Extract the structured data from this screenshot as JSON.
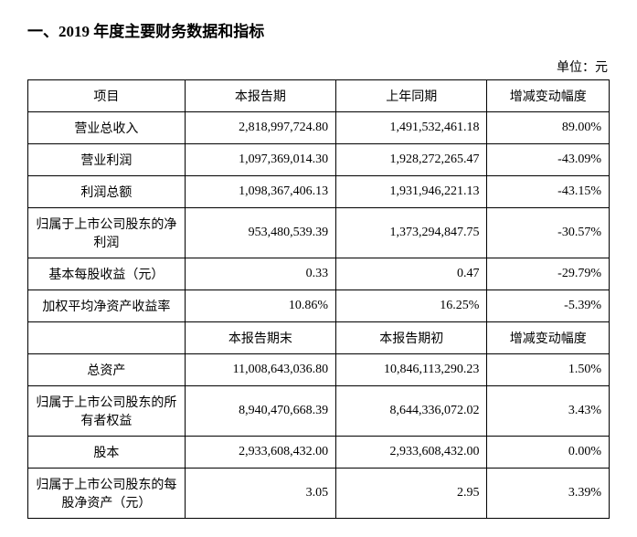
{
  "title": "一、2019 年度主要财务数据和指标",
  "unit": "单位：元",
  "headers1": {
    "item": "项目",
    "current": "本报告期",
    "prior": "上年同期",
    "change": "增减变动幅度"
  },
  "rows1": [
    {
      "label": "营业总收入",
      "current": "2,818,997,724.80",
      "prior": "1,491,532,461.18",
      "change": "89.00%"
    },
    {
      "label": "营业利润",
      "current": "1,097,369,014.30",
      "prior": "1,928,272,265.47",
      "change": "-43.09%"
    },
    {
      "label": "利润总额",
      "current": "1,098,367,406.13",
      "prior": "1,931,946,221.13",
      "change": "-43.15%"
    },
    {
      "label": "归属于上市公司股东的净利润",
      "current": "953,480,539.39",
      "prior": "1,373,294,847.75",
      "change": "-30.57%"
    },
    {
      "label": "基本每股收益（元）",
      "current": "0.33",
      "prior": "0.47",
      "change": "-29.79%"
    },
    {
      "label": "加权平均净资产收益率",
      "current": "10.86%",
      "prior": "16.25%",
      "change": "-5.39%"
    }
  ],
  "headers2": {
    "current_end": "本报告期末",
    "period_begin": "本报告期初",
    "change": "增减变动幅度"
  },
  "rows2": [
    {
      "label": "总资产",
      "current": "11,008,643,036.80",
      "prior": "10,846,113,290.23",
      "change": "1.50%"
    },
    {
      "label": "归属于上市公司股东的所有者权益",
      "current": "8,940,470,668.39",
      "prior": "8,644,336,072.02",
      "change": "3.43%"
    },
    {
      "label": "股本",
      "current": "2,933,608,432.00",
      "prior": "2,933,608,432.00",
      "change": "0.00%"
    },
    {
      "label": "归属于上市公司股东的每股净资产（元）",
      "current": "3.05",
      "prior": "2.95",
      "change": "3.39%"
    }
  ]
}
